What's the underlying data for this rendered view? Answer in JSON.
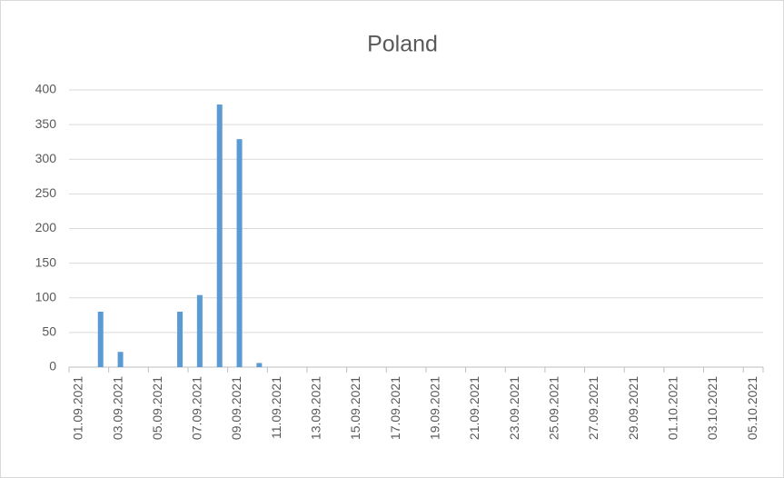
{
  "chart_data": {
    "type": "bar",
    "title": "Poland",
    "categories": [
      "01.09.2021",
      null,
      "03.09.2021",
      null,
      "05.09.2021",
      null,
      "07.09.2021",
      null,
      "09.09.2021",
      null,
      "11.09.2021",
      null,
      "13.09.2021",
      null,
      "15.09.2021",
      null,
      "17.09.2021",
      null,
      "19.09.2021",
      null,
      "21.09.2021",
      null,
      "23.09.2021",
      null,
      "25.09.2021",
      null,
      "27.09.2021",
      null,
      "29.09.2021",
      null,
      "01.10.2021",
      null,
      "03.10.2021",
      null,
      "05.10.2021"
    ],
    "values": [
      0,
      80,
      22,
      0,
      0,
      80,
      104,
      379,
      329,
      6,
      0,
      0,
      0,
      0,
      0,
      0,
      0,
      0,
      0,
      0,
      0,
      0,
      0,
      0,
      0,
      0,
      0,
      0,
      0,
      0,
      0,
      0,
      0,
      0,
      0
    ],
    "color": "#5b9bd5",
    "ylim": [
      0,
      400
    ],
    "yticks": [
      0,
      50,
      100,
      150,
      200,
      250,
      300,
      350,
      400
    ],
    "grid": true
  }
}
